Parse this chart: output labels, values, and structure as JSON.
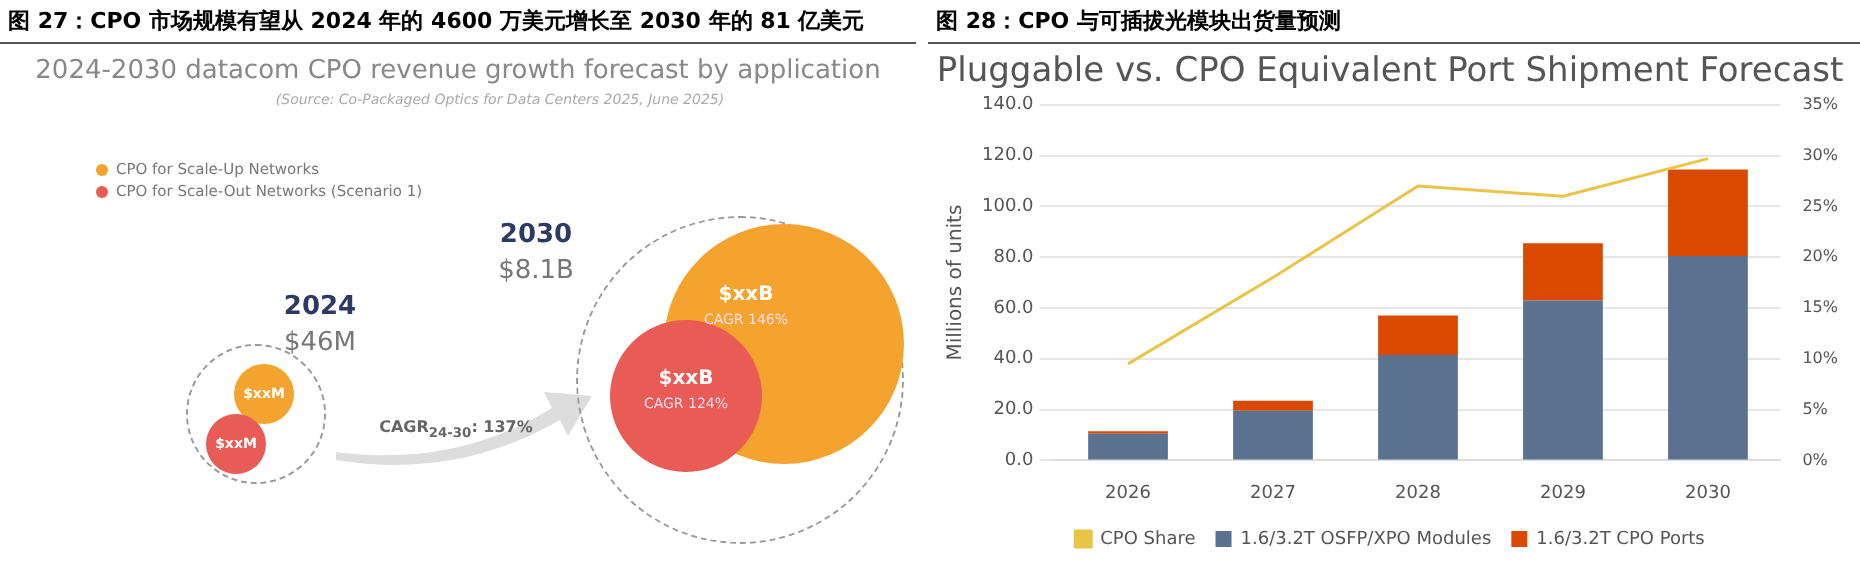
{
  "chart_data": [
    {
      "type": "other",
      "title": "图 27：CPO 市场规模有望从 2024 年的 4600 万美元增长至 2030 年的 81 亿美元",
      "subtitle": "2024-2030 datacom CPO revenue growth forecast by application",
      "categories": [
        "CPO for Scale-Up Networks",
        "CPO for Scale-Out Networks (Scenario 1)"
      ],
      "colors": [
        "#f4a32e",
        "#e95c55"
      ],
      "annotations": [
        "(Source: Co-Packaged Optics for Data Centers 2025, June 2025)",
        "2024",
        "$46M",
        "2030",
        "$8.1B",
        "$xxM",
        "$xxM",
        "$xxB",
        "CAGR 146%",
        "$xxB",
        "CAGR 124%",
        "CAGR$_{24-30}$: 137%"
      ]
    },
    {
      "type": "bar",
      "stacked": true,
      "title": "图 28：CPO 与可插拔光模块出货量预测",
      "subtitle": "Pluggable vs. CPO Equivalent Port Shipment Forecast",
      "ylabel": "Millions of units",
      "categories": [
        "2026",
        "2027",
        "2028",
        "2029",
        "2030"
      ],
      "series": [
        {
          "name": "1.6/3.2T OSFP/XPO Modules",
          "color": "#5b7190",
          "values": [
            10.5,
            19.5,
            41.5,
            63,
            80.5
          ]
        },
        {
          "name": "1.6/3.2T CPO Ports",
          "color": "#d94a00",
          "values": [
            1,
            4,
            15.5,
            22.5,
            34
          ]
        },
        {
          "name": "CPO Share",
          "type": "line",
          "axis": "y2",
          "color": "#e8c547",
          "values": [
            9.5,
            18,
            27,
            26,
            29.7
          ]
        }
      ],
      "ylim": [
        0,
        140
      ],
      "yticks": [
        {
          "value": 0,
          "label": "0.0"
        },
        {
          "value": 20,
          "label": "20.0"
        },
        {
          "value": 40,
          "label": "40.0"
        },
        {
          "value": 60,
          "label": "60.0"
        },
        {
          "value": 80,
          "label": "80.0"
        },
        {
          "value": 100,
          "label": "100.0"
        },
        {
          "value": 120,
          "label": "120.0"
        },
        {
          "value": 140,
          "label": "140.0"
        }
      ],
      "y2lim": [
        0,
        35
      ],
      "y2ticks": [
        {
          "value": 0,
          "label": "0%"
        },
        {
          "value": 5,
          "label": "5%"
        },
        {
          "value": 10,
          "label": "10%"
        },
        {
          "value": 15,
          "label": "15%"
        },
        {
          "value": 20,
          "label": "20%"
        },
        {
          "value": 25,
          "label": "25%"
        },
        {
          "value": 30,
          "label": "30%"
        },
        {
          "value": 35,
          "label": "35%"
        }
      ],
      "grid": "y",
      "legend": "bottom",
      "marker": "none"
    }
  ]
}
